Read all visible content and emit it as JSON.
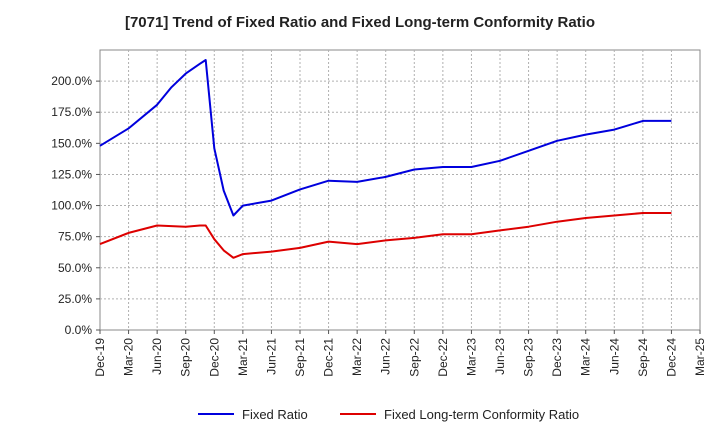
{
  "chart_data": {
    "type": "line",
    "title": "[7071]  Trend of Fixed Ratio and Fixed Long-term Conformity Ratio",
    "xlabel": "",
    "ylabel": "",
    "ylim": [
      0,
      225
    ],
    "y_ticks": [
      "0.0%",
      "25.0%",
      "50.0%",
      "75.0%",
      "100.0%",
      "125.0%",
      "150.0%",
      "175.0%",
      "200.0%"
    ],
    "x_ticks": [
      "Dec-19",
      "Mar-20",
      "Jun-20",
      "Sep-20",
      "Dec-20",
      "Mar-21",
      "Jun-21",
      "Sep-21",
      "Dec-21",
      "Mar-22",
      "Jun-22",
      "Sep-22",
      "Dec-22",
      "Mar-23",
      "Jun-23",
      "Sep-23",
      "Dec-23",
      "Mar-24",
      "Jun-24",
      "Sep-24",
      "Dec-24",
      "Mar-25"
    ],
    "grid": true,
    "legend_position": "bottom",
    "series": [
      {
        "name": "Fixed Ratio",
        "color": "#0000dd",
        "x": [
          0,
          1,
          2,
          2.5,
          3,
          3.5,
          3.7,
          4,
          4.33,
          4.67,
          5,
          6,
          7,
          8,
          9,
          10,
          11,
          12,
          13,
          14,
          15,
          16,
          17,
          18,
          19,
          20
        ],
        "y": [
          148,
          162,
          181,
          195,
          206,
          214,
          217,
          146,
          112,
          92,
          100,
          104,
          113,
          120,
          119,
          123,
          129,
          131,
          131,
          136,
          144,
          152,
          157,
          161,
          168,
          168
        ]
      },
      {
        "name": "Fixed Long-term Conformity Ratio",
        "color": "#dd0000",
        "x": [
          0,
          1,
          2,
          3,
          3.5,
          3.7,
          4,
          4.33,
          4.67,
          5,
          6,
          7,
          8,
          9,
          10,
          11,
          12,
          13,
          14,
          15,
          16,
          17,
          18,
          19,
          20
        ],
        "y": [
          69,
          78,
          84,
          83,
          84,
          84,
          73,
          64,
          58,
          61,
          63,
          66,
          71,
          69,
          72,
          74,
          77,
          77,
          80,
          83,
          87,
          90,
          92,
          94,
          94
        ]
      }
    ]
  }
}
